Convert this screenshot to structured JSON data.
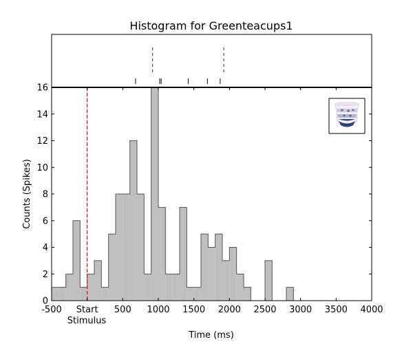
{
  "chart_data": {
    "type": "bar",
    "title": "Histogram for Greenteacups1",
    "xlabel": "Time (ms)",
    "ylabel": "Counts (Spikes)",
    "xlim": [
      -500,
      4000
    ],
    "ylim": [
      0,
      16
    ],
    "x_ticks": [
      -500,
      0,
      500,
      1000,
      1500,
      2000,
      2500,
      3000,
      3500,
      4000
    ],
    "x_tick_labels": [
      "-500",
      "Start",
      "500",
      "1000",
      "1500",
      "2000",
      "2500",
      "3000",
      "3500",
      "4000"
    ],
    "x_tick_sublabel": "Stimulus",
    "y_ticks": [
      0,
      2,
      4,
      6,
      8,
      10,
      12,
      14,
      16
    ],
    "bin_width": 100,
    "bins_start": [
      -500,
      -400,
      -300,
      -200,
      -100,
      0,
      100,
      200,
      300,
      400,
      500,
      600,
      700,
      800,
      900,
      1000,
      1100,
      1200,
      1300,
      1400,
      1500,
      1600,
      1700,
      1800,
      1900,
      2000,
      2100,
      2200,
      2300,
      2400,
      2500,
      2600,
      2700,
      2800,
      2900,
      3000,
      3100,
      3200,
      3300,
      3400,
      3500,
      3600,
      3700,
      3800,
      3900
    ],
    "counts": [
      1,
      1,
      2,
      6,
      1,
      2,
      3,
      1,
      5,
      8,
      8,
      12,
      8,
      2,
      16,
      7,
      2,
      2,
      7,
      1,
      1,
      5,
      4,
      5,
      3,
      4,
      2,
      1,
      0,
      0,
      3,
      0,
      0,
      1,
      0,
      0,
      0,
      0,
      0,
      0,
      0,
      0,
      0,
      0,
      0
    ],
    "stimulus_marker_x": 0,
    "stimulus_marker_color": "#ff0000",
    "bar_fill_color": "#bfbfbf",
    "bar_edge_color": "#555555",
    "raster_dashed_lines_x": [
      920,
      1920
    ],
    "raster_tick_marks_x": [
      680,
      1020,
      1040,
      1420,
      1690,
      1870
    ],
    "grid": false,
    "legend": "none"
  },
  "thumbnail": {
    "icon": "teacup-icon"
  }
}
